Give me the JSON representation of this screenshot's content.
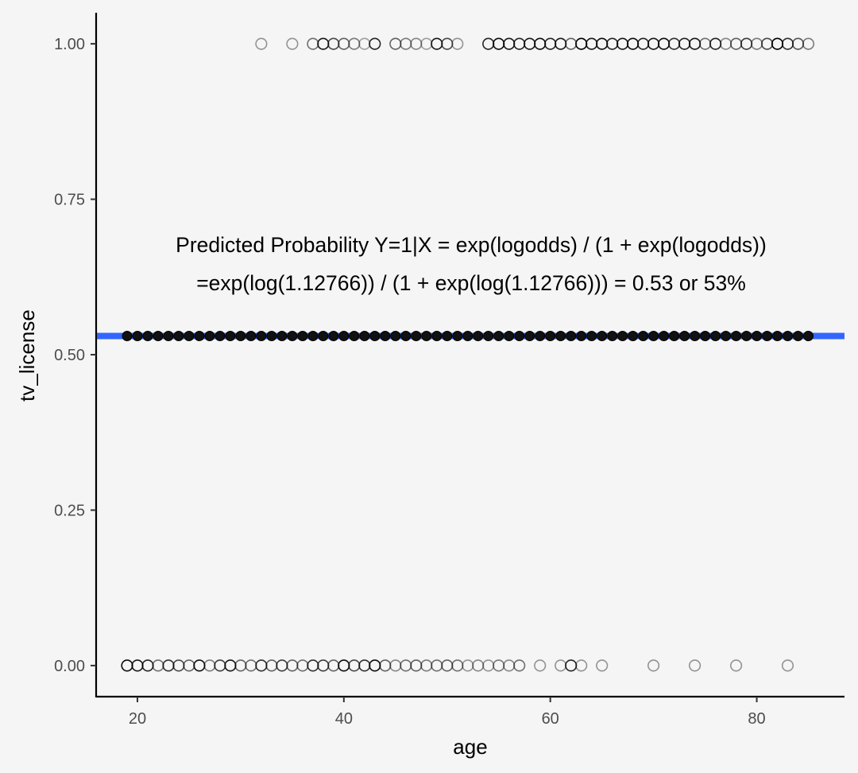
{
  "chart_data": {
    "type": "scatter",
    "xlabel": "age",
    "ylabel": "tv_license",
    "xlim": [
      16,
      88.5
    ],
    "ylim": [
      -0.05,
      1.05
    ],
    "x_ticks": [
      20,
      40,
      60,
      80
    ],
    "y_ticks": [
      0,
      0.25,
      0.5,
      0.75,
      1.0
    ],
    "y_tick_labels": [
      "0.00",
      "0.25",
      "0.50",
      "0.75",
      "1.00"
    ],
    "grid": false,
    "annotation_lines": [
      "Predicted Probability Y=1|X = exp(logodds) / (1 + exp(logodds))",
      "=exp(log(1.12766)) / (1 + exp(log(1.12766))) = 0.53 or 53%"
    ],
    "fit_line": {
      "y": 0.53,
      "color": "#3366ff"
    },
    "series": [
      {
        "kind": "observed",
        "y": 1,
        "marker": "open-circle",
        "points": [
          [
            32,
            0.4
          ],
          [
            35,
            0.4
          ],
          [
            37,
            0.55
          ],
          [
            38,
            0.9
          ],
          [
            39,
            0.7
          ],
          [
            40,
            0.6
          ],
          [
            41,
            0.5
          ],
          [
            42,
            0.35
          ],
          [
            43,
            0.85
          ],
          [
            45,
            0.6
          ],
          [
            46,
            0.5
          ],
          [
            47,
            0.45
          ],
          [
            48,
            0.35
          ],
          [
            49,
            0.9
          ],
          [
            50,
            0.7
          ],
          [
            51,
            0.4
          ],
          [
            54,
            0.85
          ],
          [
            55,
            0.95
          ],
          [
            56,
            0.9
          ],
          [
            57,
            0.85
          ],
          [
            58,
            0.9
          ],
          [
            59,
            0.95
          ],
          [
            60,
            0.85
          ],
          [
            61,
            0.9
          ],
          [
            62,
            0.6
          ],
          [
            63,
            1.0
          ],
          [
            64,
            0.9
          ],
          [
            65,
            0.95
          ],
          [
            66,
            0.85
          ],
          [
            67,
            0.9
          ],
          [
            68,
            0.95
          ],
          [
            69,
            0.85
          ],
          [
            70,
            0.9
          ],
          [
            71,
            0.95
          ],
          [
            72,
            0.8
          ],
          [
            73,
            0.85
          ],
          [
            74,
            0.9
          ],
          [
            75,
            0.55
          ],
          [
            76,
            0.85
          ],
          [
            77,
            0.45
          ],
          [
            78,
            0.6
          ],
          [
            79,
            0.75
          ],
          [
            80,
            0.5
          ],
          [
            81,
            0.7
          ],
          [
            82,
            1.0
          ],
          [
            83,
            0.8
          ],
          [
            84,
            0.65
          ],
          [
            85,
            0.5
          ]
        ]
      },
      {
        "kind": "observed",
        "y": 0,
        "marker": "open-circle",
        "points": [
          [
            19,
            0.95
          ],
          [
            20,
            0.9
          ],
          [
            21,
            0.85
          ],
          [
            22,
            0.55
          ],
          [
            23,
            0.8
          ],
          [
            24,
            0.7
          ],
          [
            25,
            0.6
          ],
          [
            26,
            0.95
          ],
          [
            27,
            0.5
          ],
          [
            28,
            0.75
          ],
          [
            29,
            0.9
          ],
          [
            30,
            0.6
          ],
          [
            31,
            0.55
          ],
          [
            32,
            0.8
          ],
          [
            33,
            0.6
          ],
          [
            34,
            0.75
          ],
          [
            35,
            0.6
          ],
          [
            36,
            0.55
          ],
          [
            37,
            0.8
          ],
          [
            38,
            0.75
          ],
          [
            39,
            0.6
          ],
          [
            40,
            0.95
          ],
          [
            41,
            0.7
          ],
          [
            42,
            0.8
          ],
          [
            43,
            0.95
          ],
          [
            44,
            0.6
          ],
          [
            45,
            0.45
          ],
          [
            46,
            0.55
          ],
          [
            47,
            0.6
          ],
          [
            48,
            0.5
          ],
          [
            49,
            0.55
          ],
          [
            50,
            0.6
          ],
          [
            51,
            0.55
          ],
          [
            52,
            0.4
          ],
          [
            53,
            0.45
          ],
          [
            54,
            0.4
          ],
          [
            55,
            0.5
          ],
          [
            56,
            0.45
          ],
          [
            57,
            0.55
          ],
          [
            59,
            0.4
          ],
          [
            61,
            0.4
          ],
          [
            62,
            0.85
          ],
          [
            63,
            0.4
          ],
          [
            65,
            0.4
          ],
          [
            70,
            0.4
          ],
          [
            74,
            0.4
          ],
          [
            78,
            0.4
          ],
          [
            83,
            0.4
          ]
        ]
      },
      {
        "kind": "predicted",
        "y": 0.53,
        "marker": "filled-circle",
        "x": [
          19,
          20,
          21,
          22,
          23,
          24,
          25,
          26,
          27,
          28,
          29,
          30,
          31,
          32,
          33,
          34,
          35,
          36,
          37,
          38,
          39,
          40,
          41,
          42,
          43,
          44,
          45,
          46,
          47,
          48,
          49,
          50,
          51,
          52,
          53,
          54,
          55,
          56,
          57,
          58,
          59,
          60,
          61,
          62,
          63,
          64,
          65,
          66,
          67,
          68,
          69,
          70,
          71,
          72,
          73,
          74,
          75,
          76,
          77,
          78,
          79,
          80,
          81,
          82,
          83,
          84,
          85
        ]
      }
    ]
  }
}
